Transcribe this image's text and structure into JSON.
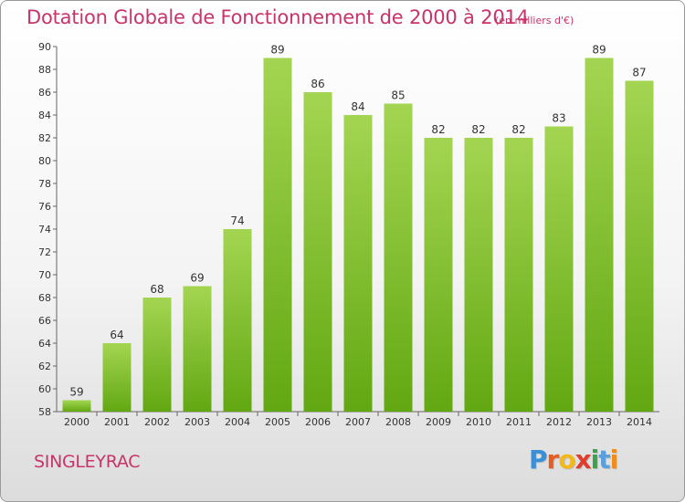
{
  "header": {
    "title": "Dotation Globale de Fonctionnement de 2000 à 2014",
    "unit": "(en milliers d'€)"
  },
  "footer": {
    "commune": "SINGLEYRAC",
    "logo": [
      "P",
      "r",
      "o",
      "x",
      "i",
      "t",
      "i"
    ]
  },
  "colors": {
    "bar_light": "#a4d552",
    "bar_dark": "#62a812",
    "title": "#c8346a",
    "logo": [
      "#3a8fd6",
      "#e85c20",
      "#f2b81c",
      "#e23c2c",
      "#3aa548",
      "#5aa0dc",
      "#f08c1c"
    ]
  },
  "chart_data": {
    "type": "bar",
    "categories": [
      "2000",
      "2001",
      "2002",
      "2003",
      "2004",
      "2005",
      "2006",
      "2007",
      "2008",
      "2009",
      "2010",
      "2011",
      "2012",
      "2013",
      "2014"
    ],
    "values": [
      59,
      64,
      68,
      69,
      74,
      89,
      86,
      84,
      85,
      82,
      82,
      82,
      83,
      89,
      87
    ],
    "ylim": [
      58,
      90
    ],
    "yticks": [
      58,
      60,
      62,
      64,
      66,
      68,
      70,
      72,
      74,
      76,
      78,
      80,
      82,
      84,
      86,
      88,
      90
    ],
    "grid": false
  }
}
